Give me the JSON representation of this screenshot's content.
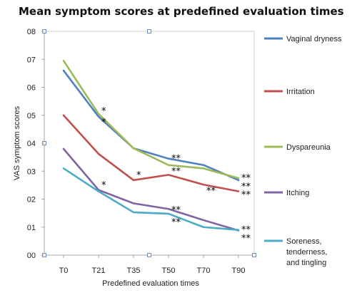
{
  "chart_data": {
    "type": "line",
    "title": "Mean symptom scores at predefined evaluation times",
    "xlabel": "Predefined evaluation times",
    "ylabel": "VAS symptom scores",
    "categories": [
      "T0",
      "T21",
      "T35",
      "T50",
      "T70",
      "T90"
    ],
    "y_tick_labels": [
      "00",
      "01",
      "02",
      "03",
      "04",
      "05",
      "06",
      "07",
      "08"
    ],
    "ylim": [
      0,
      8
    ],
    "grid": false,
    "legend_position": "right",
    "series": [
      {
        "name": "Vaginal dryness",
        "color": "#4f81bd",
        "values": [
          6.6,
          4.95,
          3.82,
          3.45,
          3.22,
          2.68
        ]
      },
      {
        "name": "Irritation",
        "color": "#c0504d",
        "values": [
          5.0,
          3.62,
          2.68,
          2.87,
          2.52,
          2.28
        ]
      },
      {
        "name": "Dyspareunia",
        "color": "#9bbb59",
        "values": [
          6.95,
          5.05,
          3.82,
          3.22,
          3.1,
          2.75
        ]
      },
      {
        "name": "Itching",
        "color": "#8064a2",
        "values": [
          3.8,
          2.33,
          1.85,
          1.65,
          1.25,
          0.88
        ]
      },
      {
        "name": "Soreness, tenderness, and tingling",
        "legend_lines": [
          "Soreness,",
          "tenderness,",
          "and tingling"
        ],
        "color": "#4bacc6",
        "values": [
          3.1,
          2.28,
          1.53,
          1.48,
          1.0,
          0.9
        ]
      }
    ],
    "annotations": [
      {
        "text": "*",
        "x": "T21",
        "y": 5.2
      },
      {
        "text": "*",
        "x": "T21",
        "y": 4.8
      },
      {
        "text": "*",
        "x": "T21",
        "y": 2.55
      },
      {
        "text": "*",
        "x": "T35",
        "y": 2.9
      },
      {
        "text": "**",
        "x": "T50",
        "y": 3.5
      },
      {
        "text": "**",
        "x": "T50",
        "y": 3.05
      },
      {
        "text": "**",
        "x": "T50",
        "y": 1.65
      },
      {
        "text": "**",
        "x": "T50",
        "y": 1.22
      },
      {
        "text": "**",
        "x": "T70",
        "y": 2.35
      },
      {
        "text": "**",
        "x": "T90",
        "y": 2.8
      },
      {
        "text": "**",
        "x": "T90",
        "y": 2.5
      },
      {
        "text": "**",
        "x": "T90",
        "y": 2.2
      },
      {
        "text": "**",
        "x": "T90",
        "y": 0.96
      },
      {
        "text": "**",
        "x": "T90",
        "y": 0.65
      }
    ]
  }
}
